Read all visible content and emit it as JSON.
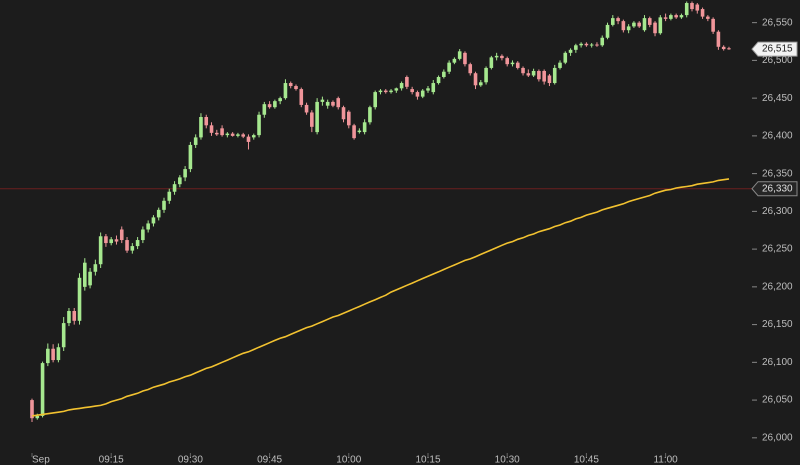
{
  "chart_data": {
    "type": "candlestick",
    "categories": [
      "Sep",
      null,
      null,
      null,
      null,
      null,
      null,
      null,
      null,
      null,
      null,
      null,
      null,
      null,
      null,
      "09:15",
      null,
      null,
      null,
      null,
      null,
      null,
      null,
      null,
      null,
      null,
      null,
      null,
      null,
      null,
      "09:30",
      null,
      null,
      null,
      null,
      null,
      null,
      null,
      null,
      null,
      null,
      null,
      null,
      null,
      null,
      "09:45",
      null,
      null,
      null,
      null,
      null,
      null,
      null,
      null,
      null,
      null,
      null,
      null,
      null,
      null,
      "10:00",
      null,
      null,
      null,
      null,
      null,
      null,
      null,
      null,
      null,
      null,
      null,
      null,
      null,
      null,
      "10:15",
      null,
      null,
      null,
      null,
      null,
      null,
      null,
      null,
      null,
      null,
      null,
      null,
      null,
      null,
      "10:30",
      null,
      null,
      null,
      null,
      null,
      null,
      null,
      null,
      null,
      null,
      null,
      null,
      null,
      null,
      "10:45",
      null,
      null,
      null,
      null,
      null,
      null,
      null,
      null,
      null,
      null,
      null,
      null,
      null,
      null,
      "11:00",
      null,
      null,
      null,
      null,
      null,
      null,
      null,
      null,
      null,
      null,
      null,
      null
    ],
    "open": [
      26050,
      26026,
      26029,
      26099,
      26118,
      26103,
      26120,
      26152,
      26168,
      26155,
      26200,
      26202,
      26220,
      26230,
      26267,
      26258,
      26263,
      26276,
      26262,
      26248,
      26254,
      26262,
      26276,
      26284,
      26292,
      26302,
      26314,
      26326,
      26336,
      26345,
      26356,
      26388,
      26398,
      26425,
      26414,
      26404,
      26410,
      26401,
      26403,
      26400,
      26402,
      26399,
      26398,
      26401,
      26428,
      26442,
      26438,
      26446,
      26450,
      26470,
      26466,
      26462,
      26441,
      26431,
      26405,
      26445,
      26440,
      26445,
      26450,
      26438,
      26432,
      26414,
      26405,
      26405,
      26418,
      26438,
      26458,
      26460,
      26458,
      26460,
      26463,
      26478,
      26462,
      26458,
      26452,
      26460,
      26458,
      26470,
      26478,
      26485,
      26497,
      26502,
      26510,
      26495,
      26483,
      26467,
      26471,
      26490,
      26504,
      26506,
      26503,
      26495,
      26497,
      26490,
      26483,
      26480,
      26486,
      26486,
      26480,
      26470,
      26490,
      26497,
      26510,
      26514,
      26520,
      26522,
      26520,
      26521,
      26520,
      26530,
      26547,
      26556,
      26552,
      26540,
      26545,
      26550,
      26540,
      26556,
      26550,
      26536,
      26557,
      26555,
      26560,
      26557,
      26560,
      26576,
      26574,
      26568,
      26558,
      26555,
      26538,
      26518,
      26516
    ],
    "high": [
      26052,
      26032,
      26101,
      26125,
      26124,
      26125,
      26160,
      26172,
      26172,
      26218,
      26238,
      26225,
      26236,
      26272,
      26270,
      26266,
      26268,
      26280,
      26266,
      26258,
      26266,
      26280,
      26288,
      26295,
      26305,
      26318,
      26330,
      26340,
      26348,
      26360,
      26392,
      26402,
      26430,
      26428,
      26418,
      26408,
      26414,
      26405,
      26405,
      26404,
      26404,
      26402,
      26403,
      26432,
      26445,
      26446,
      26448,
      26452,
      26475,
      26472,
      26468,
      26464,
      26444,
      26434,
      26450,
      26452,
      26448,
      26447,
      26452,
      26440,
      26434,
      26416,
      26410,
      26422,
      26440,
      26460,
      26462,
      26462,
      26462,
      26464,
      26472,
      26480,
      26465,
      26460,
      26462,
      26466,
      26474,
      26480,
      26488,
      26500,
      26504,
      26515,
      26512,
      26497,
      26485,
      26474,
      26492,
      26506,
      26510,
      26508,
      26505,
      26500,
      26499,
      26492,
      26488,
      26489,
      26488,
      26488,
      26482,
      26494,
      26500,
      26512,
      26516,
      26522,
      26524,
      26524,
      26523,
      26524,
      26533,
      26550,
      26560,
      26558,
      26554,
      26548,
      26552,
      26552,
      26560,
      26558,
      26552,
      26560,
      26562,
      26562,
      26562,
      26562,
      26578,
      26578,
      26576,
      26570,
      26560,
      26557,
      26540,
      26520,
      26518
    ],
    "low": [
      26021,
      26024,
      26027,
      26095,
      26100,
      26100,
      26115,
      26148,
      26150,
      26150,
      26195,
      26198,
      26215,
      26225,
      26253,
      26255,
      26256,
      26258,
      26245,
      26244,
      26250,
      26258,
      26272,
      26280,
      26288,
      26298,
      26310,
      26322,
      26332,
      26340,
      26352,
      26384,
      26395,
      26410,
      26400,
      26400,
      26399,
      26398,
      26399,
      26398,
      26397,
      26382,
      26395,
      26398,
      26424,
      26436,
      26436,
      26442,
      26448,
      26463,
      26460,
      26438,
      26428,
      26405,
      26402,
      26440,
      26436,
      26438,
      26435,
      26418,
      26410,
      26395,
      26403,
      26402,
      26415,
      26435,
      26455,
      26456,
      26456,
      26457,
      26460,
      26462,
      26455,
      26448,
      26450,
      26457,
      26455,
      26468,
      26476,
      26482,
      26495,
      26500,
      26492,
      26480,
      26462,
      26465,
      26468,
      26488,
      26500,
      26500,
      26492,
      26492,
      26488,
      26480,
      26478,
      26478,
      26472,
      26468,
      26466,
      26468,
      26488,
      26495,
      26506,
      26510,
      26517,
      26518,
      26517,
      26518,
      26518,
      26528,
      26545,
      26548,
      26537,
      26536,
      26543,
      26543,
      26538,
      26544,
      26532,
      26534,
      26552,
      26553,
      26555,
      26555,
      26557,
      26565,
      26562,
      26555,
      26552,
      26535,
      26514,
      26513,
      26514
    ],
    "close": [
      26026,
      26029,
      26099,
      26118,
      26103,
      26120,
      26152,
      26168,
      26155,
      26212,
      26232,
      26220,
      26230,
      26267,
      26258,
      26263,
      26260,
      26262,
      26248,
      26254,
      26262,
      26276,
      26284,
      26292,
      26302,
      26314,
      26326,
      26336,
      26345,
      26356,
      26388,
      26398,
      26425,
      26414,
      26404,
      26402,
      26401,
      26403,
      26400,
      26402,
      26399,
      26392,
      26401,
      26428,
      26442,
      26438,
      26446,
      26450,
      26470,
      26466,
      26462,
      26441,
      26431,
      26412,
      26445,
      26448,
      26445,
      26440,
      26438,
      26422,
      26414,
      26397,
      26407,
      26418,
      26438,
      26458,
      26460,
      26458,
      26460,
      26463,
      26470,
      26465,
      26458,
      26452,
      26460,
      26463,
      26470,
      26478,
      26485,
      26497,
      26502,
      26512,
      26495,
      26483,
      26467,
      26471,
      26490,
      26504,
      26506,
      26503,
      26495,
      26497,
      26490,
      26483,
      26480,
      26486,
      26475,
      26472,
      26470,
      26490,
      26497,
      26510,
      26514,
      26520,
      26522,
      26520,
      26521,
      26520,
      26530,
      26547,
      26556,
      26552,
      26540,
      26545,
      26550,
      26545,
      26556,
      26547,
      26536,
      26557,
      26555,
      26560,
      26557,
      26560,
      26576,
      26568,
      26566,
      26558,
      26555,
      26538,
      26518,
      26515,
      26515
    ],
    "up_color": "#a6e88f",
    "down_color": "#f0959a",
    "lines": [
      {
        "color": "#f2c230",
        "values": [
          26029,
          26030,
          26031,
          26032,
          26033,
          26034,
          26035,
          26037,
          26038,
          26039,
          26040,
          26041,
          26042,
          26043,
          26045,
          26048,
          26050,
          26052,
          26055,
          26057,
          26059,
          26062,
          26064,
          26067,
          26069,
          26071,
          26074,
          26076,
          26078,
          26081,
          26083,
          26086,
          26089,
          26092,
          26094,
          26097,
          26100,
          26103,
          26106,
          26109,
          26112,
          26114,
          26117,
          26120,
          26123,
          26126,
          26129,
          26132,
          26134,
          26137,
          26140,
          26143,
          26146,
          26148,
          26151,
          26154,
          26157,
          26160,
          26162,
          26165,
          26168,
          26171,
          26174,
          26177,
          26180,
          26183,
          26186,
          26189,
          26193,
          26196,
          26199,
          26202,
          26205,
          26208,
          26211,
          26214,
          26217,
          26220,
          26223,
          26226,
          26229,
          26232,
          26235,
          26237,
          26240,
          26243,
          26246,
          26249,
          26252,
          26255,
          26258,
          26260,
          26263,
          26265,
          26268,
          26270,
          26273,
          26275,
          26277,
          26280,
          26282,
          26285,
          26287,
          26290,
          26292,
          26295,
          26297,
          26299,
          26302,
          26304,
          26306,
          26308,
          26310,
          26313,
          26315,
          26317,
          26319,
          26321,
          26324,
          26326,
          26328,
          26329,
          26331,
          26332,
          26333,
          26334,
          26336,
          26337,
          26338,
          26339,
          26341,
          26342,
          26343
        ]
      }
    ],
    "ylim": [
      25964,
      26580
    ],
    "yticks": [
      {
        "value": 26000,
        "label": "26,000"
      },
      {
        "value": 26050,
        "label": "26,050"
      },
      {
        "value": 26100,
        "label": "26,100"
      },
      {
        "value": 26150,
        "label": "26,150"
      },
      {
        "value": 26200,
        "label": "26,200"
      },
      {
        "value": 26250,
        "label": "26,250"
      },
      {
        "value": 26300,
        "label": "26,300"
      },
      {
        "value": 26350,
        "label": "26,350"
      },
      {
        "value": 26400,
        "label": "26,400"
      },
      {
        "value": 26450,
        "label": "26,450"
      },
      {
        "value": 26500,
        "label": "26,500"
      },
      {
        "value": 26550,
        "label": "26,550"
      }
    ],
    "reference_line": {
      "value": 26330,
      "label": "26,330",
      "color": "#6b1f1f"
    },
    "last_price": {
      "value": 26515,
      "label": "26,515"
    }
  }
}
